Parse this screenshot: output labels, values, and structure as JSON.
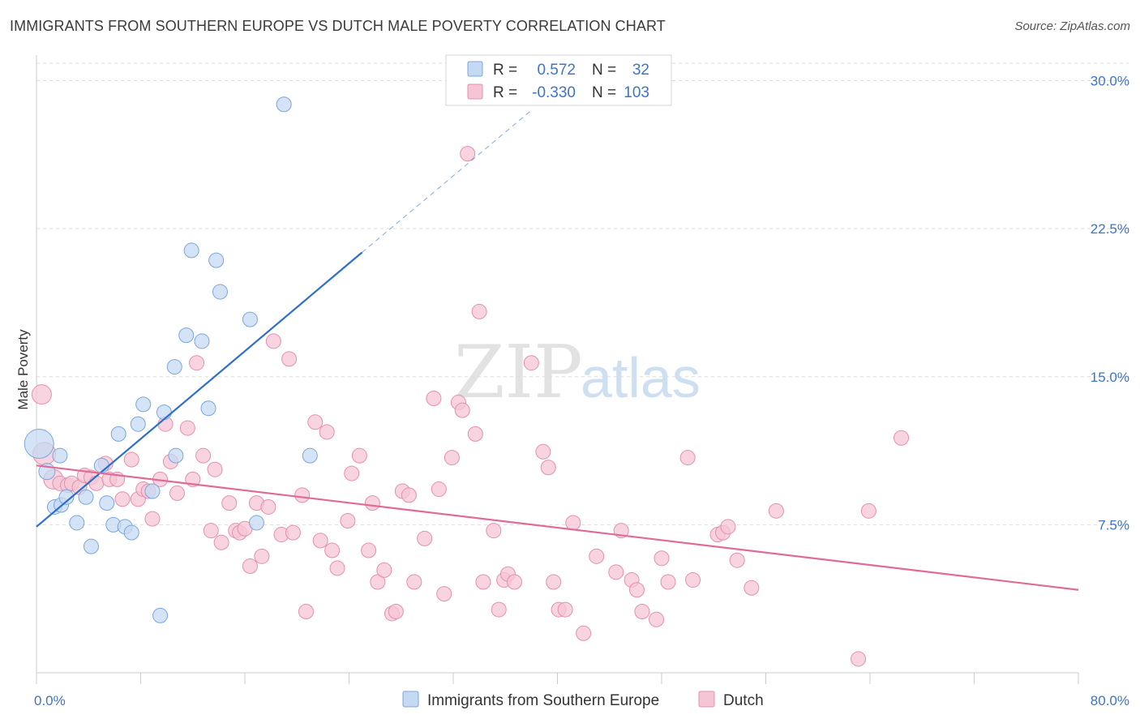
{
  "header": {
    "title": "IMMIGRANTS FROM SOUTHERN EUROPE VS DUTCH MALE POVERTY CORRELATION CHART",
    "source": "Source: ZipAtlas.com"
  },
  "watermark": {
    "part1": "ZIP",
    "part2": "atlas"
  },
  "legend_top": {
    "rows": [
      {
        "r_label": "R =",
        "r_value": "0.572",
        "n_label": "N =",
        "n_value": "32"
      },
      {
        "r_label": "R =",
        "r_value": "-0.330",
        "n_label": "N =",
        "n_value": "103"
      }
    ]
  },
  "legend_bottom": {
    "items": [
      "Immigrants from Southern Europe",
      "Dutch"
    ]
  },
  "colors": {
    "blue_fill": "#c6d9f3",
    "blue_stroke": "#7aa6dc",
    "blue_line": "#2f6fca",
    "pink_fill": "#f6c5d5",
    "pink_stroke": "#e58fae",
    "pink_line": "#e06b98",
    "tick_label": "#3f74c6",
    "grid": "#dddddd",
    "axis": "#cccccc"
  },
  "chart_data": {
    "type": "scatter",
    "title": "IMMIGRANTS FROM SOUTHERN EUROPE VS DUTCH MALE POVERTY CORRELATION CHART",
    "xlabel": "",
    "ylabel": "Male Poverty",
    "xlim": [
      0,
      80
    ],
    "ylim": [
      0,
      31.5
    ],
    "x_tick_labels": [
      "0.0%",
      "80.0%"
    ],
    "y_ticks": [
      7.5,
      15.0,
      22.5,
      30.0
    ],
    "y_tick_labels": [
      "7.5%",
      "15.0%",
      "22.5%",
      "30.0%"
    ],
    "grid": "horizontal dashed",
    "legend": "top-center",
    "series": [
      {
        "name": "Immigrants from Southern Europe",
        "r": 0.572,
        "n": 32,
        "trend": {
          "x": [
            0,
            25
          ],
          "y": [
            7.4,
            21.3
          ],
          "extend_to": [
            38,
            28.5
          ]
        },
        "points": [
          [
            0.2,
            11.6,
            18
          ],
          [
            0.8,
            10.2,
            10
          ],
          [
            1.4,
            8.4,
            9
          ],
          [
            1.8,
            11.0,
            9
          ],
          [
            1.9,
            8.5,
            9
          ],
          [
            2.3,
            8.9,
            9
          ],
          [
            3.1,
            7.6,
            9
          ],
          [
            3.8,
            8.9,
            9
          ],
          [
            4.2,
            6.4,
            9
          ],
          [
            5.0,
            10.5,
            9
          ],
          [
            5.4,
            8.6,
            9
          ],
          [
            5.9,
            7.5,
            9
          ],
          [
            6.3,
            12.1,
            9
          ],
          [
            6.8,
            7.4,
            9
          ],
          [
            7.3,
            7.1,
            9
          ],
          [
            7.8,
            12.6,
            9
          ],
          [
            8.2,
            13.6,
            9
          ],
          [
            8.9,
            9.2,
            9
          ],
          [
            9.5,
            2.9,
            9
          ],
          [
            9.8,
            13.2,
            9
          ],
          [
            10.6,
            15.5,
            9
          ],
          [
            10.7,
            11.0,
            9
          ],
          [
            11.5,
            17.1,
            9
          ],
          [
            11.9,
            21.4,
            9
          ],
          [
            12.7,
            16.8,
            9
          ],
          [
            13.2,
            13.4,
            9
          ],
          [
            13.8,
            20.9,
            9
          ],
          [
            14.1,
            19.3,
            9
          ],
          [
            16.4,
            17.9,
            9
          ],
          [
            16.9,
            7.6,
            9
          ],
          [
            19.0,
            28.8,
            9
          ],
          [
            21.0,
            11.0,
            9
          ]
        ]
      },
      {
        "name": "Dutch",
        "r": -0.33,
        "n": 103,
        "trend": {
          "x": [
            0,
            80
          ],
          "y": [
            10.5,
            4.2
          ]
        },
        "points": [
          [
            0.4,
            14.1,
            12
          ],
          [
            0.6,
            11.1,
            14
          ],
          [
            1.3,
            9.8,
            12
          ],
          [
            1.8,
            9.6,
            9
          ],
          [
            2.4,
            9.5,
            9
          ],
          [
            2.7,
            9.6,
            9
          ],
          [
            3.3,
            9.4,
            9
          ],
          [
            3.7,
            10.0,
            9
          ],
          [
            4.2,
            9.9,
            9
          ],
          [
            4.6,
            9.6,
            9
          ],
          [
            5.3,
            10.6,
            9
          ],
          [
            5.6,
            9.8,
            9
          ],
          [
            6.2,
            9.8,
            9
          ],
          [
            6.6,
            8.8,
            9
          ],
          [
            7.3,
            10.8,
            9
          ],
          [
            7.8,
            8.8,
            9
          ],
          [
            8.2,
            9.3,
            9
          ],
          [
            8.6,
            9.2,
            9
          ],
          [
            8.9,
            7.8,
            9
          ],
          [
            9.5,
            9.8,
            9
          ],
          [
            9.9,
            12.6,
            9
          ],
          [
            10.3,
            10.7,
            9
          ],
          [
            10.8,
            9.1,
            9
          ],
          [
            11.6,
            12.4,
            9
          ],
          [
            12.0,
            9.8,
            9
          ],
          [
            12.3,
            15.7,
            9
          ],
          [
            12.8,
            11.0,
            9
          ],
          [
            13.4,
            7.2,
            9
          ],
          [
            13.7,
            10.3,
            9
          ],
          [
            14.2,
            6.6,
            9
          ],
          [
            14.8,
            8.6,
            9
          ],
          [
            15.3,
            7.2,
            9
          ],
          [
            15.6,
            7.1,
            9
          ],
          [
            16.0,
            7.3,
            9
          ],
          [
            16.4,
            5.4,
            9
          ],
          [
            16.9,
            8.6,
            9
          ],
          [
            17.3,
            5.9,
            9
          ],
          [
            17.8,
            8.4,
            9
          ],
          [
            18.2,
            16.8,
            9
          ],
          [
            18.8,
            7.0,
            9
          ],
          [
            19.4,
            15.9,
            9
          ],
          [
            19.7,
            7.1,
            9
          ],
          [
            20.4,
            9.0,
            9
          ],
          [
            20.7,
            3.1,
            9
          ],
          [
            21.4,
            12.7,
            9
          ],
          [
            21.8,
            6.7,
            9
          ],
          [
            22.3,
            12.2,
            9
          ],
          [
            22.7,
            6.2,
            9
          ],
          [
            23.1,
            5.3,
            9
          ],
          [
            23.9,
            7.7,
            9
          ],
          [
            24.2,
            10.1,
            9
          ],
          [
            24.8,
            11.0,
            9
          ],
          [
            25.5,
            6.2,
            9
          ],
          [
            25.8,
            8.6,
            9
          ],
          [
            26.2,
            4.6,
            9
          ],
          [
            26.7,
            5.2,
            9
          ],
          [
            27.3,
            3.0,
            9
          ],
          [
            27.6,
            3.1,
            9
          ],
          [
            28.1,
            9.2,
            9
          ],
          [
            28.6,
            9.0,
            9
          ],
          [
            29.0,
            4.6,
            9
          ],
          [
            29.8,
            6.8,
            9
          ],
          [
            30.5,
            13.9,
            9
          ],
          [
            30.9,
            9.3,
            9
          ],
          [
            31.3,
            4.0,
            9
          ],
          [
            31.9,
            10.9,
            9
          ],
          [
            32.4,
            13.7,
            9
          ],
          [
            32.7,
            13.3,
            9
          ],
          [
            33.1,
            26.3,
            9
          ],
          [
            33.7,
            12.1,
            9
          ],
          [
            34.0,
            18.3,
            9
          ],
          [
            34.3,
            4.6,
            9
          ],
          [
            35.1,
            7.2,
            9
          ],
          [
            35.5,
            3.2,
            9
          ],
          [
            35.9,
            4.7,
            9
          ],
          [
            36.2,
            5.0,
            9
          ],
          [
            36.7,
            4.6,
            9
          ],
          [
            38.0,
            15.7,
            9
          ],
          [
            38.9,
            11.2,
            9
          ],
          [
            39.3,
            10.4,
            9
          ],
          [
            39.7,
            4.6,
            9
          ],
          [
            40.1,
            3.2,
            9
          ],
          [
            40.6,
            3.2,
            9
          ],
          [
            41.2,
            7.6,
            9
          ],
          [
            42.0,
            2.0,
            9
          ],
          [
            43.0,
            5.9,
            9
          ],
          [
            44.5,
            5.1,
            9
          ],
          [
            44.9,
            7.2,
            9
          ],
          [
            45.7,
            4.7,
            9
          ],
          [
            46.1,
            4.2,
            9
          ],
          [
            46.5,
            3.1,
            9
          ],
          [
            47.6,
            2.7,
            9
          ],
          [
            48.0,
            5.8,
            9
          ],
          [
            48.5,
            4.6,
            9
          ],
          [
            50.0,
            10.9,
            9
          ],
          [
            50.4,
            4.7,
            9
          ],
          [
            52.3,
            7.0,
            9
          ],
          [
            52.7,
            7.1,
            9
          ],
          [
            53.1,
            7.4,
            9
          ],
          [
            53.8,
            5.7,
            9
          ],
          [
            54.9,
            4.3,
            9
          ],
          [
            56.8,
            8.2,
            9
          ],
          [
            63.1,
            0.7,
            9
          ],
          [
            63.9,
            8.2,
            9
          ],
          [
            66.4,
            11.9,
            9
          ]
        ]
      }
    ]
  }
}
